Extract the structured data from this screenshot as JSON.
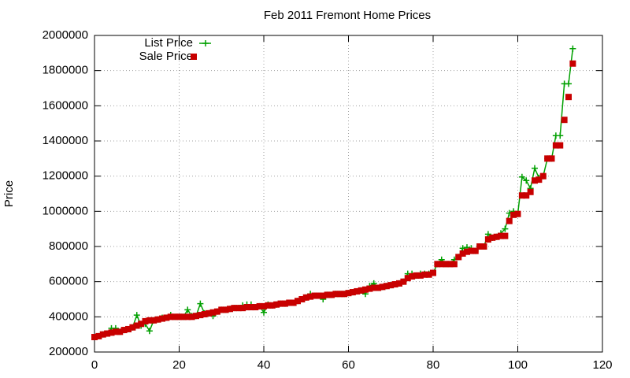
{
  "chart_data": {
    "type": "line",
    "title": "Feb 2011 Fremont Home Prices",
    "y_label": "Price",
    "x": [
      0,
      1,
      2,
      3,
      4,
      5,
      6,
      7,
      8,
      9,
      10,
      11,
      12,
      13,
      14,
      15,
      16,
      17,
      18,
      19,
      20,
      21,
      22,
      23,
      24,
      25,
      26,
      27,
      28,
      29,
      30,
      31,
      32,
      33,
      34,
      35,
      36,
      37,
      38,
      39,
      40,
      41,
      42,
      43,
      44,
      45,
      46,
      47,
      48,
      49,
      50,
      51,
      52,
      53,
      54,
      55,
      56,
      57,
      58,
      59,
      60,
      61,
      62,
      63,
      64,
      65,
      66,
      67,
      68,
      69,
      70,
      71,
      72,
      73,
      74,
      75,
      76,
      77,
      78,
      79,
      80,
      81,
      82,
      83,
      84,
      85,
      86,
      87,
      88,
      89,
      90,
      91,
      92,
      93,
      94,
      95,
      96,
      97,
      98,
      99,
      100,
      101,
      102,
      103,
      104,
      105,
      106,
      107,
      108,
      109,
      110,
      111,
      112,
      113
    ],
    "series": [
      {
        "name": "List Price",
        "color": "#00a000",
        "mode": "linespoints",
        "values": [
          285000,
          290000,
          300000,
          305000,
          335000,
          335000,
          315000,
          325000,
          330000,
          340000,
          410000,
          350000,
          360000,
          320000,
          380000,
          385000,
          395000,
          395000,
          410000,
          400000,
          400000,
          400000,
          440000,
          405000,
          405000,
          475000,
          420000,
          420000,
          405000,
          430000,
          440000,
          440000,
          445000,
          450000,
          450000,
          465000,
          470000,
          470000,
          455000,
          460000,
          425000,
          470000,
          465000,
          470000,
          475000,
          475000,
          480000,
          480000,
          490000,
          500000,
          510000,
          530000,
          520000,
          520000,
          500000,
          525000,
          525000,
          530000,
          530000,
          530000,
          535000,
          540000,
          545000,
          550000,
          530000,
          575000,
          590000,
          565000,
          570000,
          575000,
          580000,
          585000,
          590000,
          600000,
          645000,
          645000,
          635000,
          645000,
          645000,
          645000,
          650000,
          700000,
          725000,
          700000,
          700000,
          725000,
          740000,
          790000,
          795000,
          790000,
          775000,
          800000,
          800000,
          870000,
          850000,
          855000,
          875000,
          900000,
          990000,
          1000000,
          985000,
          1195000,
          1175000,
          1130000,
          1245000,
          1190000,
          1200000,
          1300000,
          1300000,
          1430000,
          1430000,
          1725000,
          1725000,
          1925000
        ]
      },
      {
        "name": "Sale Price",
        "color": "#c80000",
        "mode": "points",
        "values": [
          285000,
          290000,
          300000,
          305000,
          310000,
          315000,
          315000,
          325000,
          330000,
          340000,
          350000,
          360000,
          375000,
          380000,
          380000,
          385000,
          390000,
          395000,
          400000,
          400000,
          400000,
          400000,
          400000,
          400000,
          405000,
          410000,
          415000,
          420000,
          425000,
          430000,
          440000,
          440000,
          445000,
          450000,
          450000,
          450000,
          455000,
          455000,
          455000,
          460000,
          460000,
          465000,
          465000,
          470000,
          475000,
          475000,
          480000,
          480000,
          490000,
          500000,
          510000,
          515000,
          520000,
          520000,
          520000,
          525000,
          525000,
          530000,
          530000,
          530000,
          535000,
          540000,
          545000,
          550000,
          555000,
          560000,
          565000,
          565000,
          570000,
          575000,
          580000,
          585000,
          590000,
          600000,
          620000,
          630000,
          635000,
          635000,
          640000,
          640000,
          650000,
          700000,
          700000,
          700000,
          700000,
          700000,
          740000,
          760000,
          770000,
          775000,
          775000,
          800000,
          800000,
          840000,
          850000,
          855000,
          860000,
          860000,
          945000,
          980000,
          985000,
          1090000,
          1090000,
          1110000,
          1175000,
          1180000,
          1200000,
          1300000,
          1300000,
          1375000,
          1375000,
          1520000,
          1650000,
          1840000
        ]
      }
    ],
    "xlim": [
      0,
      120
    ],
    "xticks": [
      0,
      20,
      40,
      60,
      80,
      100,
      120
    ],
    "ylim": [
      200000,
      2000000
    ],
    "yticks": [
      200000,
      400000,
      600000,
      800000,
      1000000,
      1200000,
      1400000,
      1600000,
      1800000,
      2000000
    ],
    "grid": true,
    "legend": "top-left"
  }
}
